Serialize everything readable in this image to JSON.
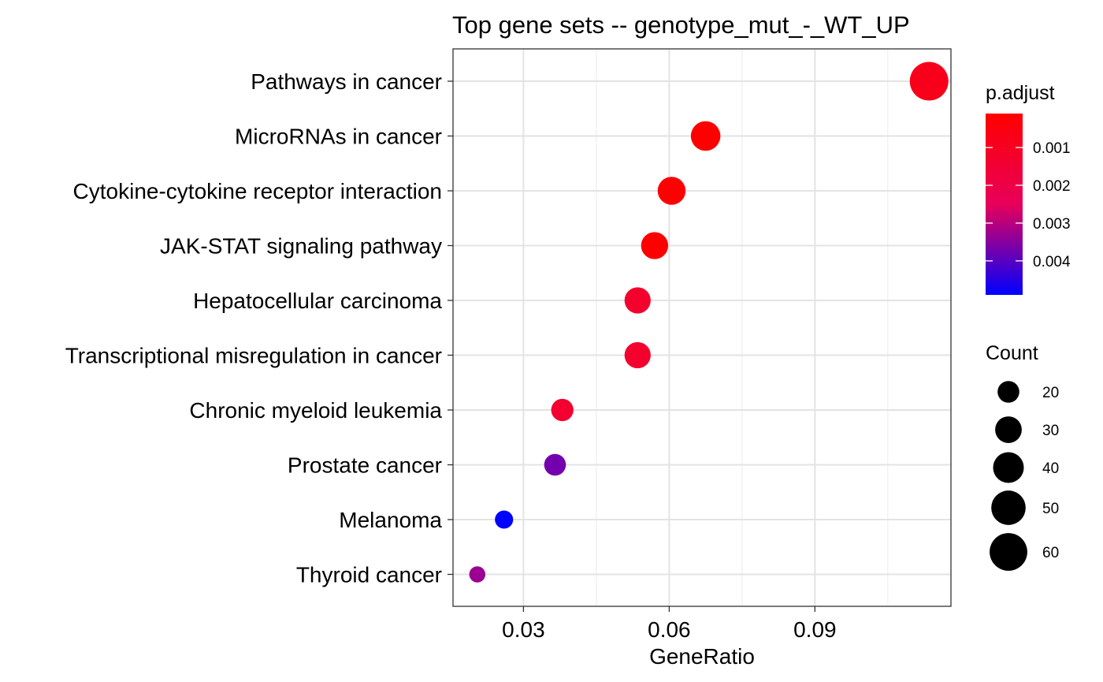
{
  "chart_data": {
    "type": "scatter",
    "title": "Top gene sets -- genotype_mut_-_WT_UP",
    "xlabel": "GeneRatio",
    "ylabel": "",
    "xlim": [
      0.0155,
      0.118
    ],
    "xticks": [
      0.03,
      0.06,
      0.09
    ],
    "xtick_labels": [
      "0.03",
      "0.06",
      "0.09"
    ],
    "grid": true,
    "categories": [
      "Pathways in cancer",
      "MicroRNAs in cancer",
      "Cytokine-cytokine receptor interaction",
      "JAK-STAT signaling pathway",
      "Hepatocellular carcinoma",
      "Transcriptional misregulation in cancer",
      "Chronic myeloid leukemia",
      "Prostate cancer",
      "Melanoma",
      "Thyroid cancer"
    ],
    "points": [
      {
        "term": "Pathways in cancer",
        "gene_ratio": 0.1135,
        "count": 63,
        "p_adjust": 0.0008
      },
      {
        "term": "MicroRNAs in cancer",
        "gene_ratio": 0.0675,
        "count": 37,
        "p_adjust": 0.0001
      },
      {
        "term": "Cytokine-cytokine receptor interaction",
        "gene_ratio": 0.0605,
        "count": 33,
        "p_adjust": 0.0001
      },
      {
        "term": "JAK-STAT signaling pathway",
        "gene_ratio": 0.057,
        "count": 31,
        "p_adjust": 0.0001
      },
      {
        "term": "Hepatocellular carcinoma",
        "gene_ratio": 0.0535,
        "count": 29,
        "p_adjust": 0.0013
      },
      {
        "term": "Transcriptional misregulation in cancer",
        "gene_ratio": 0.0535,
        "count": 29,
        "p_adjust": 0.0013
      },
      {
        "term": "Chronic myeloid leukemia",
        "gene_ratio": 0.038,
        "count": 21,
        "p_adjust": 0.0014
      },
      {
        "term": "Prostate cancer",
        "gene_ratio": 0.0365,
        "count": 20,
        "p_adjust": 0.0037
      },
      {
        "term": "Melanoma",
        "gene_ratio": 0.026,
        "count": 14,
        "p_adjust": 0.0049
      },
      {
        "term": "Thyroid cancer",
        "gene_ratio": 0.0205,
        "count": 11,
        "p_adjust": 0.0033
      }
    ],
    "color_legend": {
      "title": "p.adjust",
      "min": 0.0001,
      "max": 0.0049,
      "low_color": "#ff0000",
      "mid_color": "#e8005a",
      "high_color": "#0000ff",
      "ticks": [
        0.001,
        0.002,
        0.003,
        0.004
      ],
      "tick_labels": [
        "0.001",
        "0.002",
        "0.003",
        "0.004"
      ]
    },
    "size_legend": {
      "title": "Count",
      "values": [
        20,
        30,
        40,
        50,
        60
      ],
      "labels": [
        "20",
        "30",
        "40",
        "50",
        "60"
      ]
    },
    "size_range": [
      10,
      63
    ],
    "legend_position": "right"
  }
}
